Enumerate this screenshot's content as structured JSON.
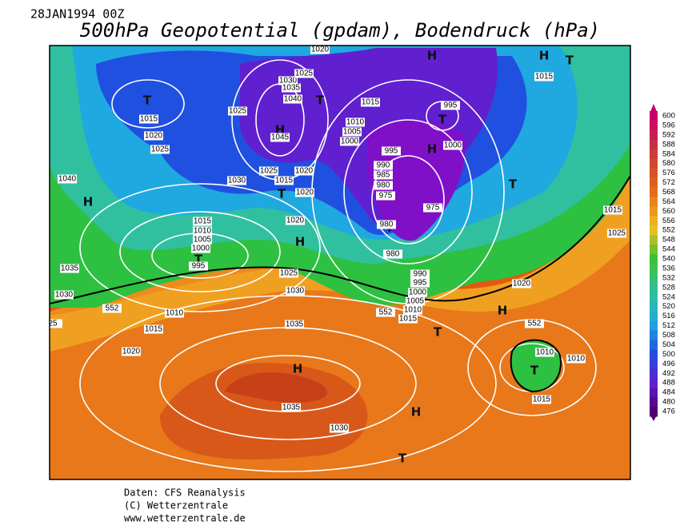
{
  "header": {
    "date": "28JAN1994 00Z",
    "title": "500hPa Geopotential (gpdam), Bodendruck (hPa)"
  },
  "footer": {
    "source": "Daten: CFS Reanalysis",
    "copyright": "(C) Wetterzentrale",
    "url": "www.wetterzentrale.de"
  },
  "colorbar": {
    "ticks": [
      "600",
      "596",
      "592",
      "588",
      "584",
      "580",
      "576",
      "572",
      "568",
      "564",
      "560",
      "556",
      "552",
      "548",
      "544",
      "540",
      "536",
      "532",
      "528",
      "524",
      "520",
      "516",
      "512",
      "508",
      "504",
      "500",
      "496",
      "492",
      "488",
      "484",
      "480",
      "476"
    ]
  },
  "centers": [
    "T",
    "H",
    "T",
    "H",
    "H",
    "T",
    "T",
    "H",
    "T",
    "T",
    "H",
    "H",
    "T",
    "T",
    "H",
    "T",
    "T",
    "H",
    "H",
    "T"
  ],
  "isobar_labels": [
    "1020",
    "1030",
    "1035",
    "1025",
    "1040",
    "1025",
    "1015",
    "1015",
    "1020",
    "1025",
    "1045",
    "1010",
    "1005",
    "1000",
    "995",
    "1000",
    "995",
    "1040",
    "1030",
    "1025",
    "1015",
    "1020",
    "1020",
    "990",
    "985",
    "980",
    "975",
    "975",
    "980",
    "980",
    "1015",
    "1010",
    "1005",
    "1000",
    "995",
    "1020",
    "1025",
    "1030",
    "1035",
    "1030",
    "25",
    "1010",
    "1015",
    "1020",
    "990",
    "995",
    "1000",
    "1005",
    "1010",
    "1015",
    "1035",
    "1020",
    "1015",
    "1025",
    "1010",
    "1010",
    "1015",
    "1035",
    "1030",
    "1015",
    "552",
    "552",
    "552"
  ]
}
